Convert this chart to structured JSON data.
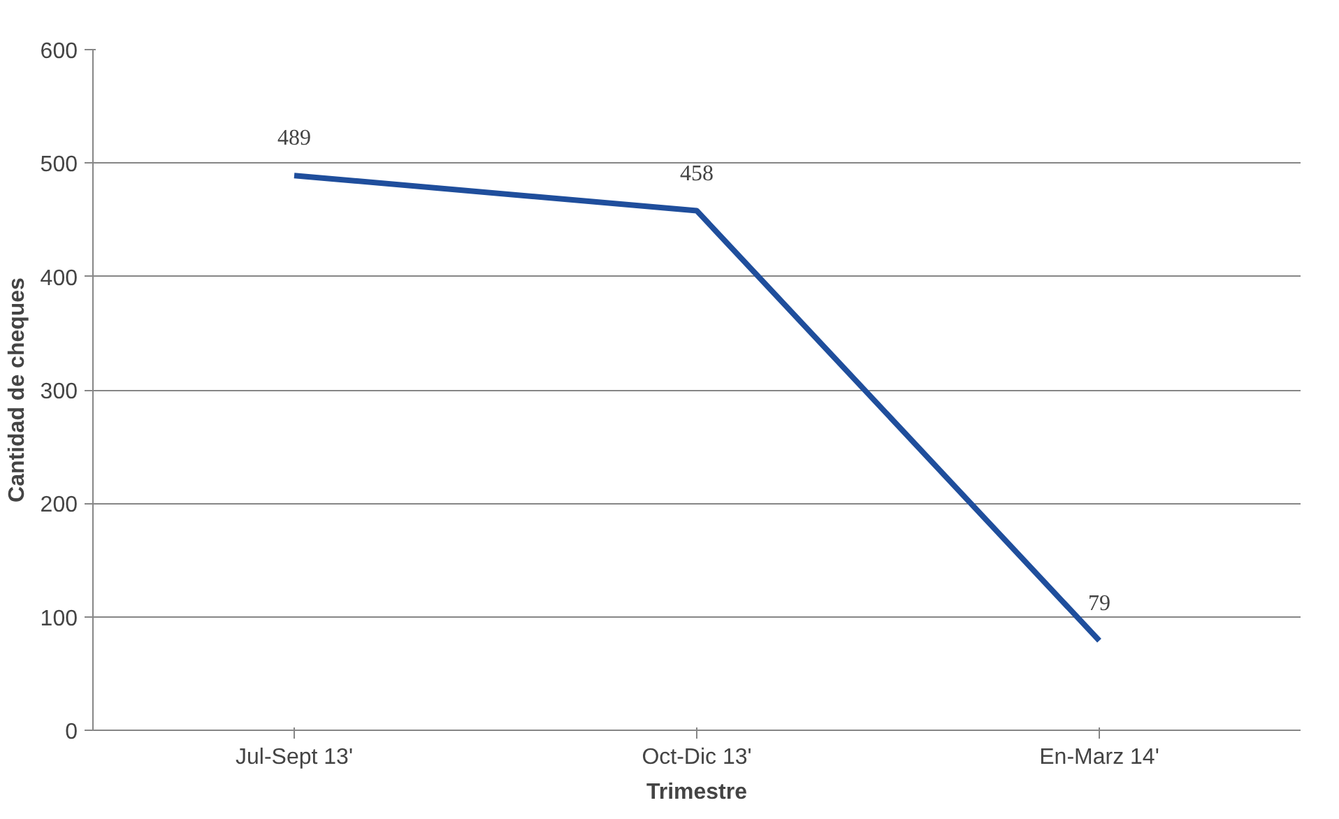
{
  "chart_data": {
    "type": "line",
    "xlabel": "Trimestre",
    "ylabel": "Cantidad de cheques",
    "categories": [
      "Jul-Sept 13'",
      "Oct-Dic 13'",
      "En-Marz 14'"
    ],
    "series": [
      {
        "color": "#1f4e9c",
        "values": [
          489,
          458,
          79
        ]
      }
    ],
    "ylim": [
      0,
      600
    ],
    "yticks": [
      0,
      100,
      200,
      300,
      400,
      500,
      600
    ],
    "grid": "y",
    "data_labels": true,
    "marker": "none",
    "line_style": "solid"
  }
}
